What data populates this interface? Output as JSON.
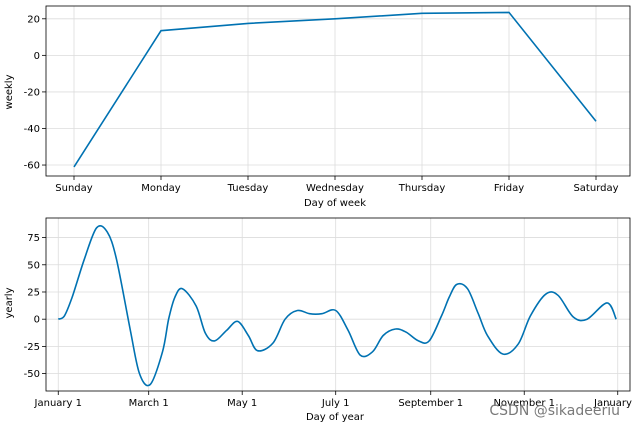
{
  "chart_data": [
    {
      "type": "line",
      "name": "weekly-component",
      "xlabel": "Day of week",
      "ylabel": "weekly",
      "categories": [
        "Sunday",
        "Monday",
        "Tuesday",
        "Wednesday",
        "Thursday",
        "Friday",
        "Saturday"
      ],
      "values": [
        -61,
        13.5,
        17.5,
        20,
        23,
        23.5,
        -36
      ],
      "ylim": [
        -66,
        27
      ],
      "yticks": [
        -60,
        -40,
        -20,
        0,
        20
      ],
      "grid": true,
      "color": "#0072b2"
    },
    {
      "type": "line",
      "name": "yearly-component",
      "xlabel": "Day of year",
      "ylabel": "yearly",
      "x_tick_labels": [
        "January 1",
        "March 1",
        "May 1",
        "July 1",
        "September 1",
        "November 1",
        "January 1"
      ],
      "x_tick_days": [
        0,
        59,
        120,
        181,
        243,
        304,
        365
      ],
      "xlim": [
        -8,
        373
      ],
      "ylim": [
        -66,
        93
      ],
      "yticks": [
        -50,
        -25,
        0,
        25,
        50,
        75
      ],
      "x": [
        0,
        4,
        9,
        17,
        25,
        32,
        38,
        47,
        53,
        60,
        68,
        72,
        76,
        81,
        90,
        96,
        102,
        110,
        117,
        124,
        130,
        140,
        148,
        156,
        164,
        172,
        181,
        189,
        197,
        205,
        212,
        220,
        227,
        235,
        242,
        250,
        255,
        260,
        267,
        274,
        280,
        290,
        300,
        308,
        318,
        326,
        336,
        345,
        358,
        364
      ],
      "y": [
        0,
        3,
        20,
        55,
        84,
        80,
        55,
        -10,
        -50,
        -60,
        -30,
        0,
        20,
        28,
        12,
        -13,
        -20,
        -10,
        -2,
        -15,
        -29,
        -22,
        0,
        8,
        5,
        5,
        8,
        -10,
        -33,
        -30,
        -15,
        -9,
        -12,
        -20,
        -20,
        3,
        20,
        32,
        28,
        5,
        -15,
        -32,
        -23,
        3,
        23,
        22,
        2,
        0,
        15,
        0
      ],
      "grid": true,
      "color": "#0072b2"
    }
  ],
  "watermark": "CSDN @sikadeeriu"
}
